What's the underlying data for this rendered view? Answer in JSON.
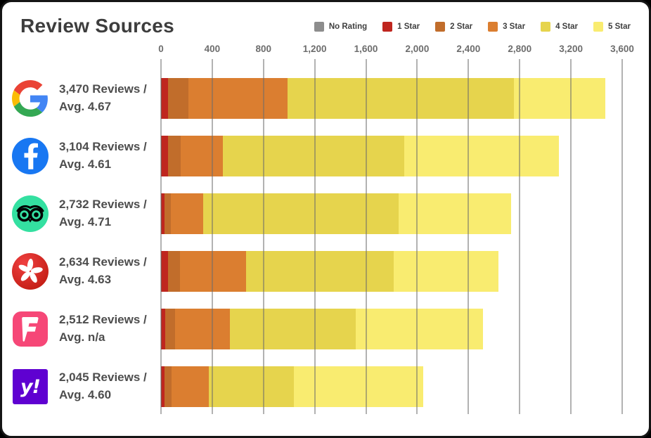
{
  "title": "Review Sources",
  "legend": [
    {
      "label": "No Rating",
      "color": "#8d8d8d"
    },
    {
      "label": "1 Star",
      "color": "#bf261f"
    },
    {
      "label": "2 Star",
      "color": "#c16d2b"
    },
    {
      "label": "3 Star",
      "color": "#db7e30"
    },
    {
      "label": "4 Star",
      "color": "#e6d44d"
    },
    {
      "label": "5 Star",
      "color": "#f9ec70"
    }
  ],
  "axis": {
    "tick_labels": [
      "0",
      "400",
      "800",
      "1,200",
      "1,600",
      "2,000",
      "2,400",
      "2,800",
      "3,200",
      "3,600"
    ],
    "tick_values": [
      0,
      400,
      800,
      1200,
      1600,
      2000,
      2400,
      2800,
      3200,
      3600
    ],
    "max": 3600
  },
  "rows": [
    {
      "source": "Google",
      "icon": "google",
      "line1": "3,470 Reviews /",
      "line2": "Avg. 4.67"
    },
    {
      "source": "Facebook",
      "icon": "facebook",
      "line1": "3,104 Reviews /",
      "line2": "Avg. 4.61"
    },
    {
      "source": "Tripadvisor",
      "icon": "tripadvisor",
      "line1": "2,732 Reviews /",
      "line2": "Avg. 4.71"
    },
    {
      "source": "Yelp",
      "icon": "yelp",
      "line1": "2,634 Reviews /",
      "line2": "Avg. 4.63"
    },
    {
      "source": "Foursquare",
      "icon": "foursquare",
      "line1": "2,512 Reviews /",
      "line2": "Avg. n/a"
    },
    {
      "source": "Yahoo",
      "icon": "yahoo",
      "line1": "2,045 Reviews /",
      "line2": "Avg. 4.60"
    }
  ],
  "icon_colors": {
    "facebook_bg": "#1877f2",
    "tripadvisor_bg": "#34e0a1",
    "yelp_bg": "#d32323",
    "foursquare_bg": "#f64777",
    "yahoo_bg": "#5f01d1"
  },
  "icon_glyphs": {
    "yahoo": "y!"
  },
  "chart_data": {
    "type": "bar",
    "stacked": true,
    "orientation": "horizontal",
    "title": "Review Sources",
    "categories": [
      "Google",
      "Facebook",
      "Tripadvisor",
      "Yelp",
      "Foursquare",
      "Yahoo"
    ],
    "totals": [
      3470,
      3104,
      2732,
      2634,
      2512,
      2045
    ],
    "averages": [
      "4.67",
      "4.61",
      "4.71",
      "4.63",
      "n/a",
      "4.60"
    ],
    "series": [
      {
        "name": "No Rating",
        "color": "#8d8d8d",
        "values": [
          0,
          0,
          0,
          0,
          0,
          0
        ]
      },
      {
        "name": "1 Star",
        "color": "#bf261f",
        "values": [
          55,
          55,
          27,
          54,
          34,
          25
        ]
      },
      {
        "name": "2 Star",
        "color": "#c16d2b",
        "values": [
          160,
          100,
          50,
          93,
          74,
          55
        ]
      },
      {
        "name": "3 Star",
        "color": "#db7e30",
        "values": [
          775,
          330,
          255,
          515,
          432,
          295
        ]
      },
      {
        "name": "4 Star",
        "color": "#e6d44d",
        "values": [
          1765,
          1415,
          1525,
          1155,
          980,
          665
        ]
      },
      {
        "name": "5 Star",
        "color": "#f9ec70",
        "values": [
          715,
          1204,
          875,
          817,
          992,
          1005
        ]
      }
    ],
    "xlim": [
      0,
      3600
    ],
    "grid": true,
    "legend_position": "top-right"
  }
}
